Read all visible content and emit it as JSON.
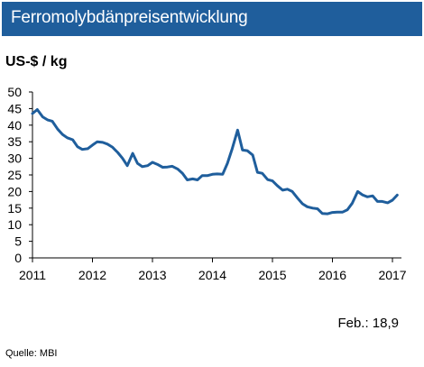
{
  "header": {
    "title": "Ferromolybdänpreisentwicklung"
  },
  "chart_data": {
    "type": "line",
    "title": "Ferromolybdänpreisentwicklung",
    "ylabel": "US-$ / kg",
    "xlabel": "",
    "ylim": [
      0,
      50
    ],
    "xlim": [
      2011,
      2017.15
    ],
    "yticks": [
      "0",
      "5",
      "10",
      "15",
      "20",
      "25",
      "30",
      "35",
      "40",
      "45",
      "50"
    ],
    "xticks": [
      "2011",
      "2012",
      "2013",
      "2014",
      "2015",
      "2016",
      "2017"
    ],
    "grid": false,
    "color": "#1f5e9c",
    "series": [
      {
        "points": [
          [
            2011.0,
            43.5
          ],
          [
            2011.08,
            44.7
          ],
          [
            2011.17,
            42.5
          ],
          [
            2011.25,
            41.6
          ],
          [
            2011.33,
            41.2
          ],
          [
            2011.42,
            38.8
          ],
          [
            2011.5,
            37.2
          ],
          [
            2011.58,
            36.2
          ],
          [
            2011.67,
            35.6
          ],
          [
            2011.75,
            33.5
          ],
          [
            2011.83,
            32.7
          ],
          [
            2011.92,
            32.9
          ],
          [
            2012.0,
            34.0
          ],
          [
            2012.08,
            35.0
          ],
          [
            2012.17,
            34.8
          ],
          [
            2012.25,
            34.3
          ],
          [
            2012.33,
            33.4
          ],
          [
            2012.42,
            31.8
          ],
          [
            2012.5,
            30.0
          ],
          [
            2012.58,
            27.8
          ],
          [
            2012.67,
            31.5
          ],
          [
            2012.75,
            28.5
          ],
          [
            2012.83,
            27.5
          ],
          [
            2012.92,
            27.8
          ],
          [
            2013.0,
            28.8
          ],
          [
            2013.08,
            28.2
          ],
          [
            2013.17,
            27.3
          ],
          [
            2013.25,
            27.4
          ],
          [
            2013.33,
            27.6
          ],
          [
            2013.42,
            26.8
          ],
          [
            2013.5,
            25.5
          ],
          [
            2013.58,
            23.5
          ],
          [
            2013.67,
            23.8
          ],
          [
            2013.75,
            23.5
          ],
          [
            2013.83,
            24.8
          ],
          [
            2013.92,
            24.8
          ],
          [
            2014.0,
            25.2
          ],
          [
            2014.08,
            25.3
          ],
          [
            2014.17,
            25.2
          ],
          [
            2014.25,
            28.5
          ],
          [
            2014.33,
            33.0
          ],
          [
            2014.42,
            38.5
          ],
          [
            2014.5,
            32.5
          ],
          [
            2014.58,
            32.3
          ],
          [
            2014.67,
            31.0
          ],
          [
            2014.75,
            25.8
          ],
          [
            2014.83,
            25.5
          ],
          [
            2014.92,
            23.6
          ],
          [
            2015.0,
            23.2
          ],
          [
            2015.08,
            21.8
          ],
          [
            2015.17,
            20.4
          ],
          [
            2015.25,
            20.7
          ],
          [
            2015.33,
            20.0
          ],
          [
            2015.42,
            18.0
          ],
          [
            2015.5,
            16.3
          ],
          [
            2015.58,
            15.4
          ],
          [
            2015.67,
            15.0
          ],
          [
            2015.75,
            14.8
          ],
          [
            2015.83,
            13.4
          ],
          [
            2015.92,
            13.3
          ],
          [
            2016.0,
            13.7
          ],
          [
            2016.08,
            13.8
          ],
          [
            2016.17,
            13.8
          ],
          [
            2016.25,
            14.5
          ],
          [
            2016.33,
            16.5
          ],
          [
            2016.42,
            20.0
          ],
          [
            2016.5,
            19.0
          ],
          [
            2016.58,
            18.4
          ],
          [
            2016.67,
            18.7
          ],
          [
            2016.75,
            17.0
          ],
          [
            2016.83,
            17.0
          ],
          [
            2016.92,
            16.6
          ],
          [
            2017.0,
            17.4
          ],
          [
            2017.08,
            18.9
          ]
        ]
      }
    ]
  },
  "note": "Feb.: 18,9",
  "source": "Quelle: MBI"
}
